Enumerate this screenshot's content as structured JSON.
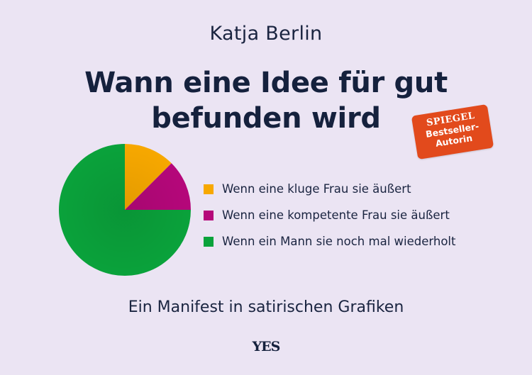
{
  "cover": {
    "author": "Katja Berlin",
    "title_line1": "Wann eine Idee für gut",
    "title_line2": "befunden wird",
    "subtitle": "Ein Manifest in satirischen Grafiken",
    "publisher": "YES",
    "badge": {
      "line1": "SPIEGEL",
      "line2": "Bestseller-",
      "line3": "Autorin",
      "color": "#e24a1c"
    },
    "background_color": "#ebe4f3"
  },
  "chart_data": {
    "type": "pie",
    "title": "Wann eine Idee für gut befunden wird",
    "categories": [
      "Wenn eine kluge Frau sie äußert",
      "Wenn eine kompetente Frau sie äußert",
      "Wenn ein Mann sie noch mal wiederholt"
    ],
    "values": [
      12.5,
      12.5,
      75
    ],
    "colors": [
      "#f7a800",
      "#b5077a",
      "#0aa23b"
    ],
    "start_angle": "12 o'clock, clockwise",
    "legend_position": "right"
  },
  "legend": {
    "items": [
      {
        "label": "Wenn eine kluge Frau sie äußert",
        "color": "#f7a800"
      },
      {
        "label": "Wenn eine kompetente Frau sie äußert",
        "color": "#b5077a"
      },
      {
        "label": "Wenn ein Mann sie noch mal wiederholt",
        "color": "#0aa23b"
      }
    ]
  }
}
